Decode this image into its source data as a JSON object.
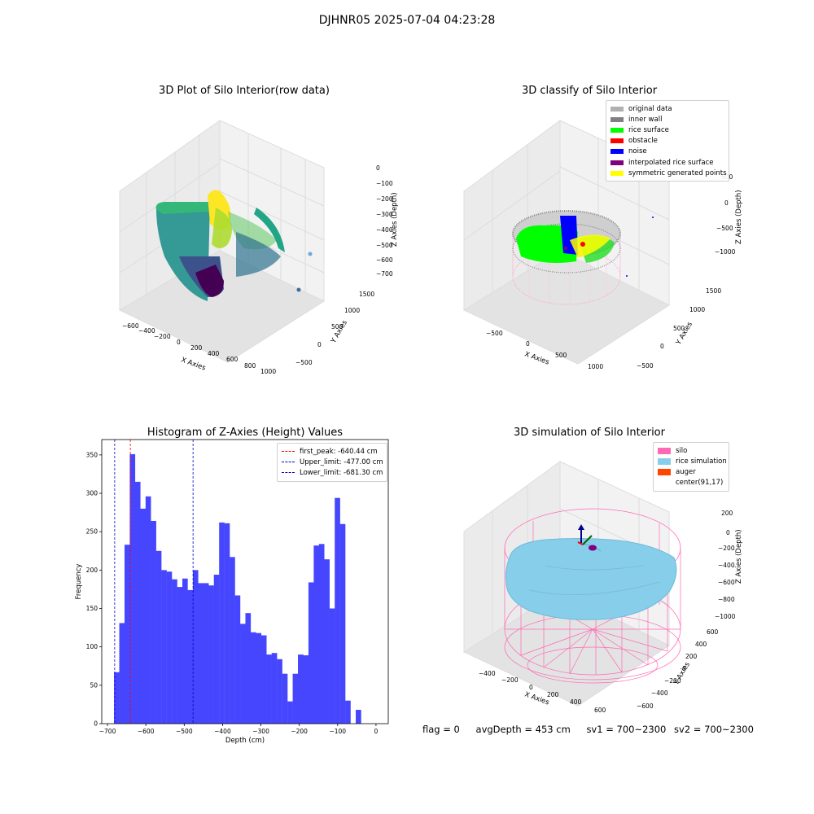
{
  "suptitle": "DJHNR05 2025-07-04 04:23:28",
  "panel1": {
    "title": "3D Plot of Silo Interior(row data)",
    "xlabel": "X Axies",
    "ylabel": "Y Axies",
    "zlabel": "Z Axies (Depth)",
    "xticks": [
      "−600",
      "−400",
      "−200",
      "0",
      "200",
      "400",
      "600",
      "800",
      "1000"
    ],
    "yticks": [
      "−500",
      "0",
      "500",
      "1000",
      "1500"
    ],
    "zticks": [
      "0",
      "−100",
      "−200",
      "−300",
      "−400",
      "−500",
      "−600",
      "−700"
    ]
  },
  "panel2": {
    "title": "3D classify of Silo Interior",
    "xlabel": "X Axies",
    "ylabel": "Y Axies",
    "zlabel": "Z Axies (Depth)",
    "xticks": [
      "−500",
      "0",
      "500",
      "1000"
    ],
    "yticks": [
      "−500",
      "0",
      "500",
      "1000",
      "1500"
    ],
    "zticks": [
      "500",
      "0",
      "−500",
      "−1000"
    ],
    "legend": [
      {
        "label": "original data",
        "color": "#b0b0b0"
      },
      {
        "label": "inner wall",
        "color": "#808080"
      },
      {
        "label": "rice surface",
        "color": "#00ff00"
      },
      {
        "label": "obstacle",
        "color": "#ff0000"
      },
      {
        "label": "noise",
        "color": "#0000ff"
      },
      {
        "label": "interpolated rice surface",
        "color": "#800080"
      },
      {
        "label": "symmetric generated points",
        "color": "#ffff00"
      }
    ]
  },
  "panel3": {
    "title": "Histogram of Z-Axies (Height) Values",
    "legend": [
      {
        "label": "first_peak: -640.44 cm",
        "color": "#ff0000"
      },
      {
        "label": "Upper_limit: -477.00 cm",
        "color": "#0000cc"
      },
      {
        "label": "Lower_limit: -681.30 cm",
        "color": "#0000cc"
      }
    ]
  },
  "panel4": {
    "title": "3D simulation of Silo Interior",
    "xlabel": "X Axies",
    "ylabel": "Y Axies",
    "zlabel": "Z Axies (Depth)",
    "xticks": [
      "−400",
      "−200",
      "0",
      "200",
      "400",
      "600"
    ],
    "yticks": [
      "−600",
      "−400",
      "−200",
      "0",
      "200",
      "400",
      "600"
    ],
    "zticks": [
      "200",
      "0",
      "−200",
      "−400",
      "−600",
      "−800",
      "−1000"
    ],
    "legend": [
      {
        "label": "silo",
        "color": "#ff69b4"
      },
      {
        "label": "rice simulation",
        "color": "#87ceeb"
      },
      {
        "label": "auger",
        "color": "#ff4500"
      },
      {
        "label": "center(91,17)",
        "color": "none"
      }
    ]
  },
  "footer": {
    "flag": "flag = 0",
    "avg": "avgDepth = 453 cm",
    "sv1": "sv1 = 700~2300",
    "sv2": "sv2 = 700~2300"
  },
  "chart_data": {
    "type": "bar",
    "title": "Histogram of Z-Axies (Height) Values",
    "xlabel": "Depth (cm)",
    "ylabel": "Frequency",
    "xlim": [
      -715,
      32
    ],
    "ylim": [
      0,
      370
    ],
    "xticks": [
      -700,
      -600,
      -500,
      -400,
      -300,
      -200,
      -100,
      0
    ],
    "yticks": [
      0,
      50,
      100,
      150,
      200,
      250,
      300,
      350
    ],
    "bin_start": -683,
    "bin_width": 13.7,
    "values": [
      67,
      131,
      233,
      351,
      315,
      280,
      296,
      264,
      225,
      200,
      198,
      188,
      178,
      189,
      174,
      200,
      183,
      183,
      180,
      194,
      262,
      261,
      217,
      167,
      130,
      144,
      119,
      118,
      115,
      90,
      92,
      84,
      65,
      29,
      65,
      90,
      89,
      184,
      232,
      234,
      214,
      150,
      294,
      260,
      30,
      0,
      18
    ],
    "vlines": [
      {
        "x": -640.44,
        "color": "#ff0000",
        "label": "first_peak: -640.44 cm"
      },
      {
        "x": -477.0,
        "color": "#0000cc",
        "label": "Upper_limit: -477.00 cm"
      },
      {
        "x": -681.3,
        "color": "#0000cc",
        "label": "Lower_limit: -681.30 cm"
      }
    ],
    "bar_color": "#4646ff",
    "legend_position": "top-right"
  }
}
